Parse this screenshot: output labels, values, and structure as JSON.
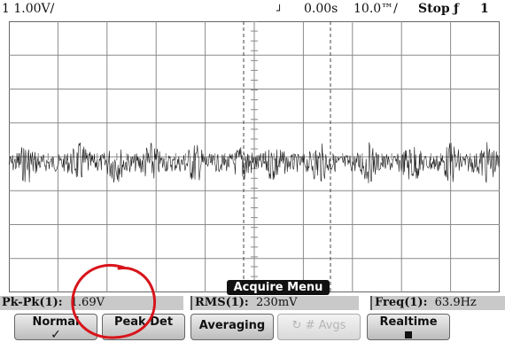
{
  "status_bar": {
    "channel_scale": "1 1.00V/",
    "time_offset": "0.00s",
    "time_scale": "10.0™/",
    "run_state": "Stop",
    "trigger_icon": "ƒ",
    "trigger_channel": "1",
    "trigger_marker_icon": "trigger-position-marker"
  },
  "menu": {
    "title": "Acquire Menu"
  },
  "measurements": {
    "pkpk": {
      "label": "Pk-Pk(",
      "channel": "1",
      "label_end": "):",
      "value": "1.69V"
    },
    "rms": {
      "label": "RMS(",
      "channel": "1",
      "label_end": "):",
      "value": "230mV"
    },
    "freq": {
      "label": "Freq(",
      "channel": "1",
      "label_end": "):",
      "value": "63.9Hz"
    }
  },
  "softkeys": {
    "normal": {
      "label": "Normal",
      "mark": "✓"
    },
    "peak_det": {
      "label": "Peak Det"
    },
    "averaging": {
      "label": "Averaging"
    },
    "avgs": {
      "label": "# Avgs",
      "icon": "rotary-knob-icon"
    },
    "realtime": {
      "label": "Realtime",
      "mark": "■"
    }
  },
  "colors": {
    "trace": "#1a1a1a",
    "grid": "#8a8a8a",
    "annotation_circle": "#d8141b",
    "softkey_bg": "#d0d0d0"
  }
}
